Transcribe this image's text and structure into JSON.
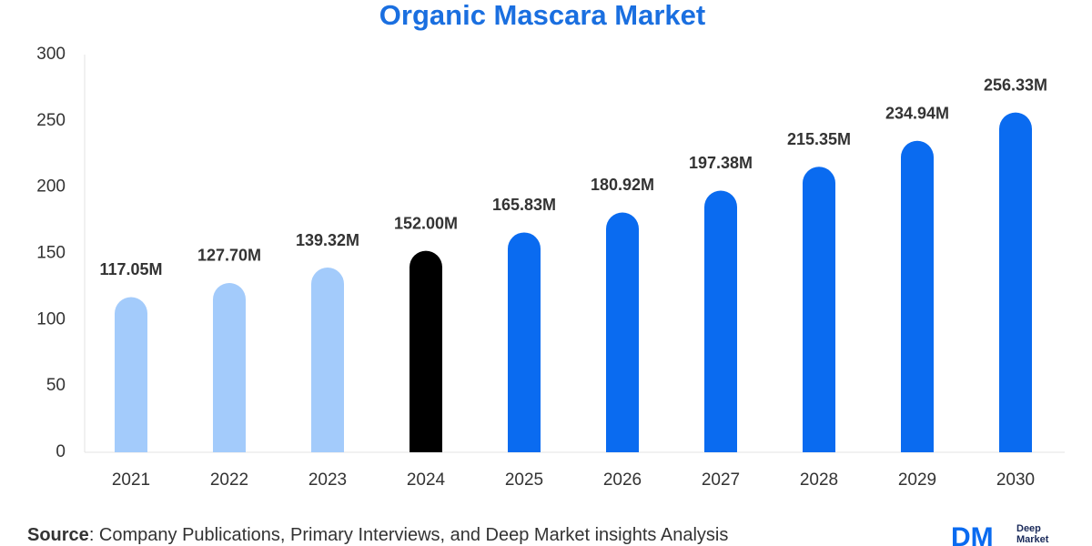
{
  "chart_data": {
    "type": "bar",
    "title": "Organic Mascara Market",
    "categories": [
      "2021",
      "2022",
      "2023",
      "2024",
      "2025",
      "2026",
      "2027",
      "2028",
      "2029",
      "2030"
    ],
    "values": [
      117.05,
      127.7,
      139.32,
      152.0,
      165.83,
      180.92,
      197.38,
      215.35,
      234.94,
      256.33
    ],
    "value_labels": [
      "117.05M",
      "127.70M",
      "139.32M",
      "152.00M",
      "165.83M",
      "180.92M",
      "197.38M",
      "215.35M",
      "234.94M",
      "256.33M"
    ],
    "colors": [
      "#a3cbfb",
      "#a3cbfb",
      "#a3cbfb",
      "#000000",
      "#0a6bf0",
      "#0a6bf0",
      "#0a6bf0",
      "#0a6bf0",
      "#0a6bf0",
      "#0a6bf0"
    ],
    "ylim": [
      0,
      300
    ],
    "yticks": [
      0,
      50,
      100,
      150,
      200,
      250,
      300
    ],
    "grid": false
  },
  "source": {
    "label": "Source",
    "text": ": Company Publications, Primary Interviews, and Deep Market insights Analysis"
  },
  "logo": {
    "mark": "DM",
    "line1": "Deep",
    "line2": "Market"
  }
}
